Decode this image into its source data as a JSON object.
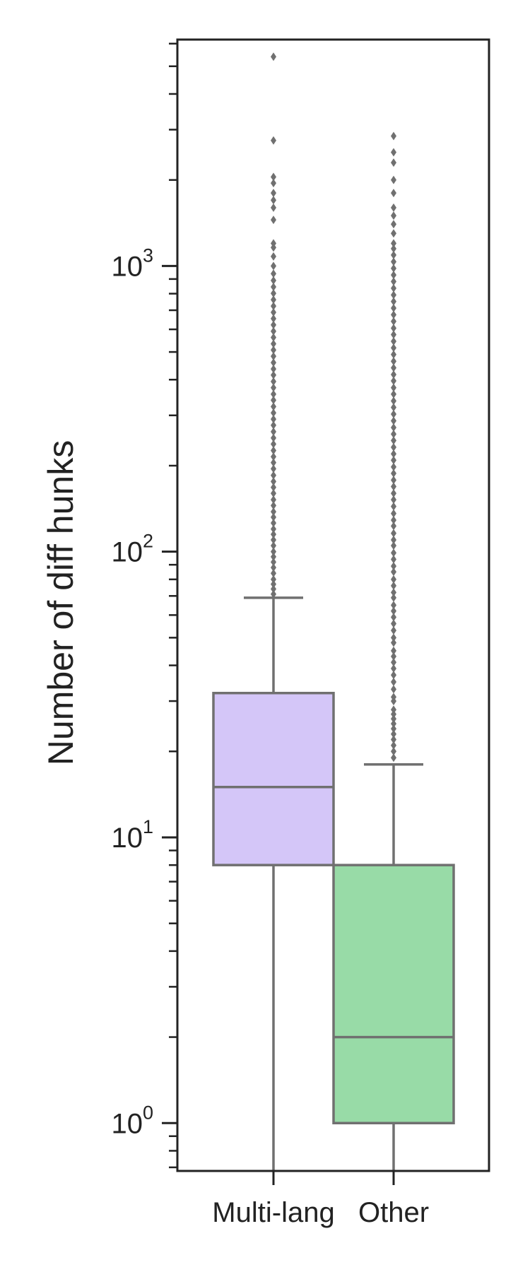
{
  "chart_data": {
    "type": "boxplot",
    "ylabel": "Number of diff hunks",
    "yscale": "log",
    "ylim": [
      0.68,
      6200
    ],
    "yticks": [
      {
        "value": 1,
        "base": "10",
        "exp": "0"
      },
      {
        "value": 10,
        "base": "10",
        "exp": "1"
      },
      {
        "value": 100,
        "base": "10",
        "exp": "2"
      },
      {
        "value": 1000,
        "base": "10",
        "exp": "3"
      }
    ],
    "categories": [
      "Multi-lang",
      "Other"
    ],
    "grid": false,
    "legend": "none",
    "series": [
      {
        "category": "Multi-lang",
        "color": "#d4c6f8",
        "whisker_low": 0.68,
        "q1": 8,
        "median": 15,
        "q3": 32,
        "whisker_high": 69,
        "outliers": [
          71,
          74,
          77,
          80,
          84,
          88,
          92,
          96,
          100,
          105,
          110,
          115,
          120,
          126,
          132,
          138,
          145,
          152,
          160,
          168,
          176,
          185,
          195,
          205,
          215,
          226,
          238,
          250,
          263,
          277,
          291,
          306,
          322,
          339,
          356,
          375,
          394,
          415,
          436,
          459,
          483,
          508,
          534,
          562,
          591,
          622,
          654,
          688,
          724,
          762,
          802,
          845,
          890,
          940,
          1000,
          1080,
          1160,
          1200,
          1450,
          1600,
          1700,
          1800,
          1950,
          2050,
          2750,
          5400
        ]
      },
      {
        "category": "Other",
        "color": "#98dba7",
        "whisker_low": 0.68,
        "q1": 1,
        "median": 2,
        "q3": 8,
        "whisker_high": 18,
        "outliers": [
          19,
          20,
          21,
          22,
          23,
          24,
          25,
          26,
          27,
          28,
          30,
          31,
          33,
          35,
          37,
          39,
          41,
          43,
          45,
          48,
          50,
          53,
          56,
          59,
          62,
          65,
          69,
          72,
          76,
          80,
          85,
          89,
          94,
          99,
          105,
          110,
          116,
          123,
          129,
          136,
          144,
          152,
          160,
          169,
          178,
          188,
          198,
          209,
          220,
          232,
          245,
          258,
          272,
          287,
          303,
          320,
          337,
          356,
          375,
          396,
          417,
          440,
          464,
          490,
          517,
          545,
          575,
          606,
          640,
          675,
          712,
          751,
          792,
          836,
          882,
          930,
          981,
          1035,
          1092,
          1150,
          1200,
          1300,
          1400,
          1500,
          1600,
          1800,
          2000,
          2300,
          2500,
          2850
        ]
      }
    ]
  }
}
